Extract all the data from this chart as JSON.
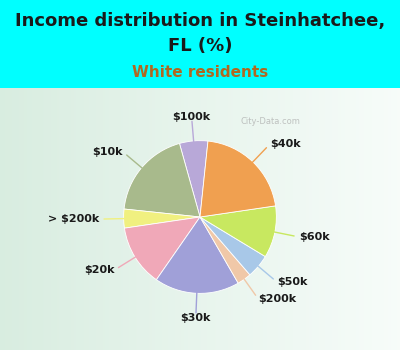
{
  "title_line1": "Income distribution in Steinhatchee,",
  "title_line2": "FL (%)",
  "subtitle": "White residents",
  "background_color": "#00FFFF",
  "chart_bg_start": "#e8f5ee",
  "chart_bg_end": "#d0eee0",
  "labels": [
    "$100k",
    "$10k",
    "> $200k",
    "$20k",
    "$30k",
    "$200k",
    "$50k",
    "$60k",
    "$40k"
  ],
  "sizes": [
    6,
    19,
    4,
    13,
    18,
    3,
    5,
    11,
    21
  ],
  "colors": [
    "#b8a8d8",
    "#a8ba8c",
    "#f0f080",
    "#f0a8b8",
    "#a0a0d8",
    "#f0c8a8",
    "#a8c8e8",
    "#c8e860",
    "#f0a050"
  ],
  "title_fontsize": 13,
  "subtitle_fontsize": 11,
  "subtitle_color": "#b06820",
  "title_color": "#1a1a1a",
  "label_color": "#1a1a1a",
  "label_fontsize": 8,
  "startangle": 84,
  "label_dist": 1.32,
  "line_inner_dist": 0.82,
  "watermark": "City-Data.com"
}
